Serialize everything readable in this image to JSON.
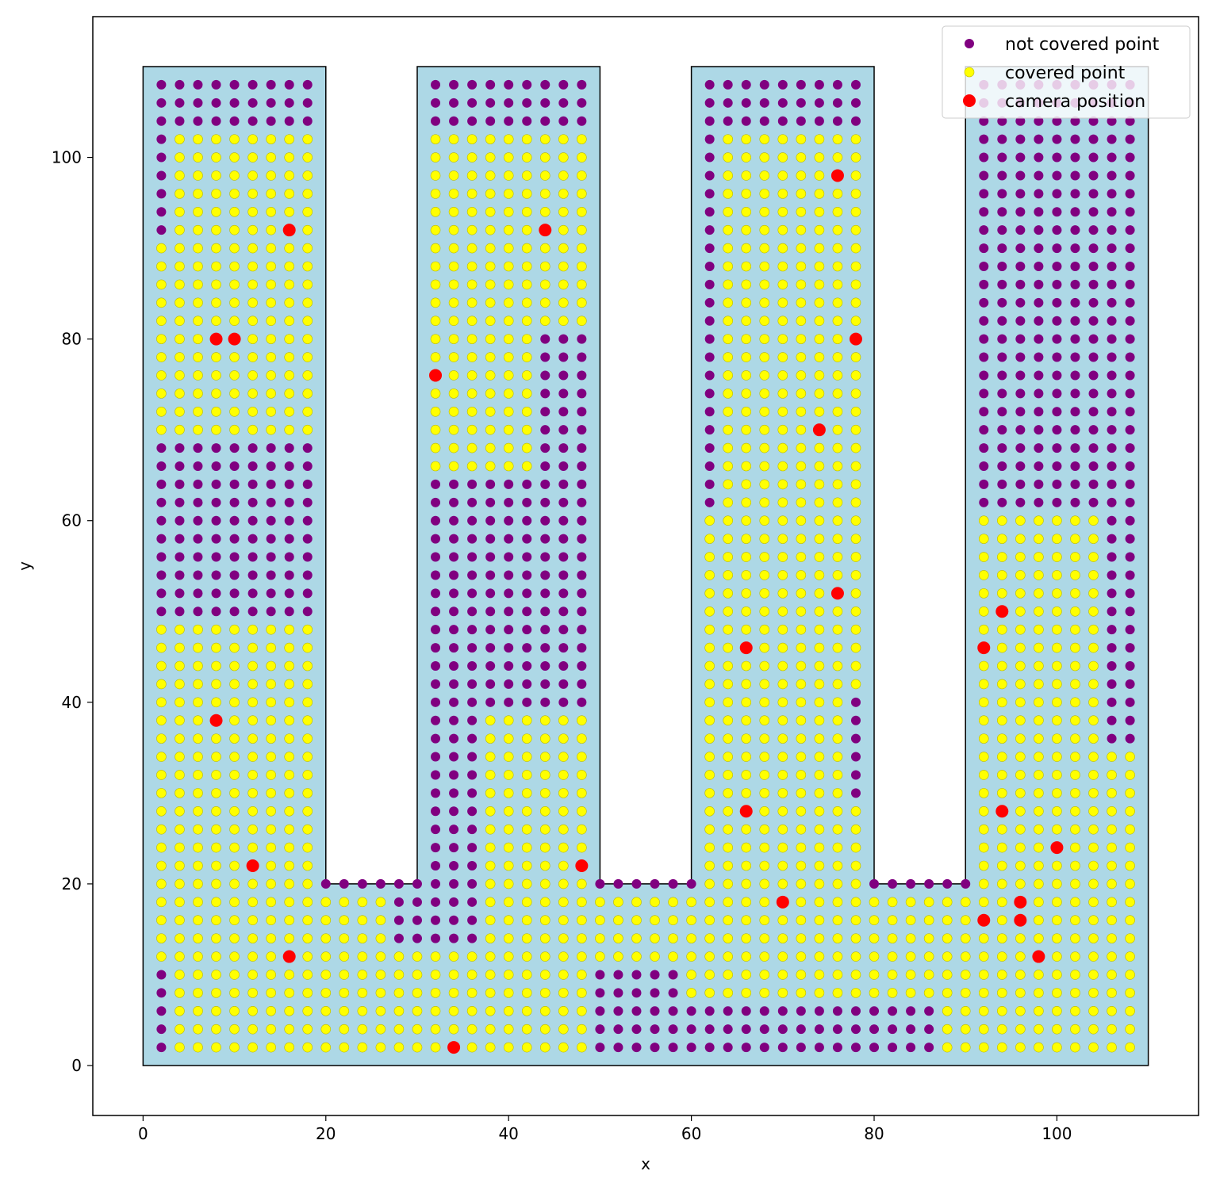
{
  "chart_data": {
    "type": "scatter",
    "title": "",
    "xlabel": "x",
    "ylabel": "y",
    "xlim": [
      -5.5,
      115.5
    ],
    "ylim": [
      -5.5,
      115.5
    ],
    "xticks": [
      "0",
      "20",
      "40",
      "60",
      "80",
      "100"
    ],
    "yticks": [
      "0",
      "20",
      "40",
      "60",
      "80",
      "100"
    ],
    "grid": false,
    "legend_position": "top-right",
    "region": {
      "fill": "#add8e6",
      "edge": "#000000",
      "outline": [
        [
          0,
          0
        ],
        [
          110,
          0
        ],
        [
          110,
          110
        ],
        [
          90,
          110
        ],
        [
          90,
          20
        ],
        [
          80,
          20
        ],
        [
          80,
          110
        ],
        [
          60,
          110
        ],
        [
          60,
          20
        ],
        [
          50,
          20
        ],
        [
          50,
          110
        ],
        [
          30,
          110
        ],
        [
          30,
          20
        ],
        [
          20,
          20
        ],
        [
          20,
          110
        ],
        [
          0,
          110
        ]
      ]
    },
    "grid_points": {
      "x_start": 2,
      "x_end": 108,
      "y_start": 2,
      "y_end": 108,
      "step": 2
    },
    "covered_regions": [
      {
        "x": [
          4,
          18
        ],
        "y": [
          70,
          102
        ]
      },
      {
        "x": [
          2,
          18
        ],
        "y": [
          70,
          90
        ]
      },
      {
        "x": [
          2,
          18
        ],
        "y": [
          12,
          48
        ]
      },
      {
        "x": [
          4,
          18
        ],
        "y": [
          2,
          10
        ]
      },
      {
        "x": [
          20,
          26
        ],
        "y": [
          2,
          18
        ]
      },
      {
        "x": [
          28,
          36
        ],
        "y": [
          2,
          12
        ]
      },
      {
        "x": [
          32,
          48
        ],
        "y": [
          66,
          102
        ]
      },
      {
        "x": [
          38,
          48
        ],
        "y": [
          2,
          38
        ]
      },
      {
        "x": [
          50,
          58
        ],
        "y": [
          12,
          18
        ]
      },
      {
        "x": [
          60,
          78
        ],
        "y": [
          8,
          18
        ]
      },
      {
        "x": [
          64,
          78
        ],
        "y": [
          20,
          102
        ]
      },
      {
        "x": [
          62,
          76
        ],
        "y": [
          20,
          60
        ]
      },
      {
        "x": [
          80,
          108
        ],
        "y": [
          8,
          18
        ]
      },
      {
        "x": [
          88,
          108
        ],
        "y": [
          2,
          6
        ]
      },
      {
        "x": [
          92,
          108
        ],
        "y": [
          20,
          34
        ]
      },
      {
        "x": [
          92,
          104
        ],
        "y": [
          36,
          60
        ]
      }
    ],
    "uncovered_regions": [
      {
        "x": [
          32,
          32
        ],
        "y": [
          20,
          64
        ]
      },
      {
        "x": [
          32,
          36
        ],
        "y": [
          20,
          34
        ]
      },
      {
        "x": [
          44,
          48
        ],
        "y": [
          64,
          80
        ]
      },
      {
        "x": [
          50,
          58
        ],
        "y": [
          2,
          10
        ]
      },
      {
        "x": [
          60,
          86
        ],
        "y": [
          2,
          6
        ]
      },
      {
        "x": [
          62,
          62
        ],
        "y": [
          62,
          108
        ]
      },
      {
        "x": [
          78,
          78
        ],
        "y": [
          30,
          40
        ]
      },
      {
        "x": [
          92,
          108
        ],
        "y": [
          62,
          108
        ]
      },
      {
        "x": [
          106,
          108
        ],
        "y": [
          36,
          60
        ]
      }
    ],
    "series": [
      {
        "name": "not covered point",
        "color": "#800080"
      },
      {
        "name": "covered point",
        "color": "#ffff00"
      },
      {
        "name": "camera position",
        "color": "#ff0000",
        "points": [
          [
            16,
            92
          ],
          [
            8,
            80
          ],
          [
            10,
            80
          ],
          [
            8,
            38
          ],
          [
            12,
            22
          ],
          [
            16,
            12
          ],
          [
            34,
            2
          ],
          [
            44,
            92
          ],
          [
            32,
            76
          ],
          [
            48,
            22
          ],
          [
            76,
            98
          ],
          [
            78,
            80
          ],
          [
            74,
            70
          ],
          [
            76,
            52
          ],
          [
            66,
            46
          ],
          [
            66,
            28
          ],
          [
            70,
            18
          ],
          [
            92,
            46
          ],
          [
            94,
            50
          ],
          [
            94,
            28
          ],
          [
            100,
            24
          ],
          [
            96,
            18
          ],
          [
            92,
            16
          ],
          [
            96,
            16
          ],
          [
            98,
            12
          ]
        ]
      }
    ]
  }
}
